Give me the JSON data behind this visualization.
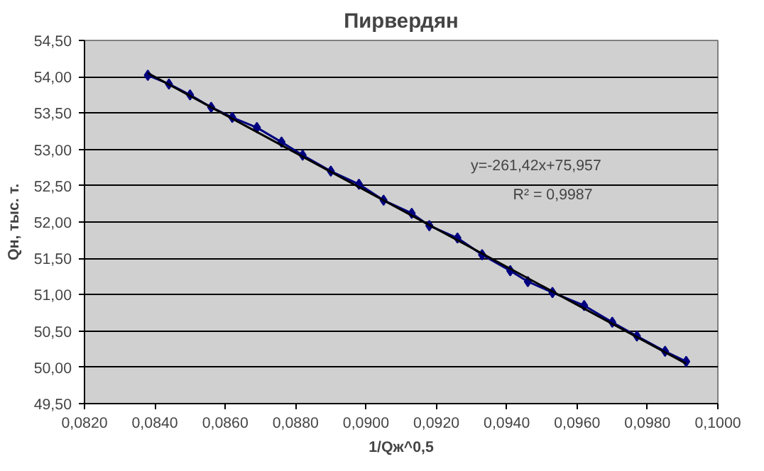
{
  "chart_data": {
    "type": "line",
    "title": "Пирвердян",
    "xlabel": "1/Qж^0,5",
    "ylabel": "Qн, тыс. т.",
    "marker": "diamond",
    "grid": "y",
    "xlim": [
      0.082,
      0.1
    ],
    "xticks": [
      {
        "value": 0.082,
        "label": "0,0820"
      },
      {
        "value": 0.084,
        "label": "0,0840"
      },
      {
        "value": 0.086,
        "label": "0,0860"
      },
      {
        "value": 0.088,
        "label": "0,0880"
      },
      {
        "value": 0.09,
        "label": "0,0900"
      },
      {
        "value": 0.092,
        "label": "0,0920"
      },
      {
        "value": 0.094,
        "label": "0,0940"
      },
      {
        "value": 0.096,
        "label": "0,0960"
      },
      {
        "value": 0.098,
        "label": "0,0980"
      },
      {
        "value": 0.1,
        "label": "0,1000"
      }
    ],
    "ylim": [
      49.5,
      54.5
    ],
    "yticks": [
      {
        "value": 49.5,
        "label": "49,50"
      },
      {
        "value": 50,
        "label": "50,00"
      },
      {
        "value": 50.5,
        "label": "50,50"
      },
      {
        "value": 51,
        "label": "51,00"
      },
      {
        "value": 51.5,
        "label": "51,50"
      },
      {
        "value": 52,
        "label": "52,00"
      },
      {
        "value": 52.5,
        "label": "52,50"
      },
      {
        "value": 53,
        "label": "53,00"
      },
      {
        "value": 53.5,
        "label": "53,50"
      },
      {
        "value": 54,
        "label": "54,00"
      },
      {
        "value": 54.5,
        "label": "54,50"
      }
    ],
    "series": [
      {
        "color": "#000080",
        "x": [
          0.0838,
          0.0844,
          0.085,
          0.0856,
          0.0862,
          0.0869,
          0.0876,
          0.0882,
          0.089,
          0.0898,
          0.0905,
          0.0913,
          0.0918,
          0.0926,
          0.0933,
          0.0941,
          0.0946,
          0.0953,
          0.0962,
          0.097,
          0.0977,
          0.0985,
          0.0991
        ],
        "values": [
          54.02,
          53.9,
          53.75,
          53.58,
          53.44,
          53.3,
          53.1,
          52.92,
          52.7,
          52.52,
          52.3,
          52.12,
          51.95,
          51.78,
          51.55,
          51.33,
          51.18,
          51.03,
          50.85,
          50.62,
          50.43,
          50.22,
          50.08
        ]
      },
      {
        "color": "#000000",
        "marker": "none",
        "x": [
          0.0838,
          0.0991
        ],
        "values": [
          54.05,
          50.05
        ]
      }
    ],
    "annotations": [
      "y=-261,42x+75,957",
      "R² = 0,9987"
    ]
  }
}
